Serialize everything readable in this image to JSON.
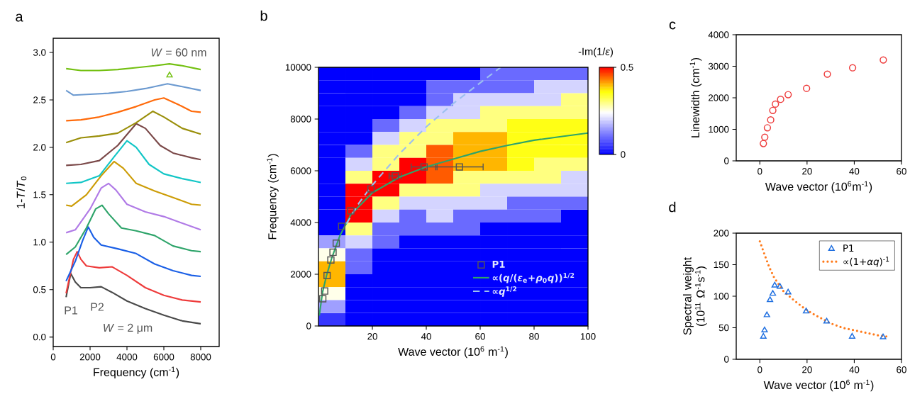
{
  "chart_data": [
    {
      "type": "line",
      "title": "a",
      "xlabel": "Frequency (cm$^{-1}$)",
      "ylabel": "1-*T*/*T*$_{0}$",
      "xlim": [
        0,
        9000
      ],
      "xticks": [
        0,
        2000,
        4000,
        6000,
        8000
      ],
      "ylim": [
        -0.1,
        3.15
      ],
      "yticks": [
        {
          "value": 0,
          "label": "0.0"
        },
        0.5,
        {
          "value": 1,
          "label": "1.0"
        },
        1.5,
        {
          "value": 2,
          "label": "2.0"
        },
        2.5,
        {
          "value": 3,
          "label": "3.0"
        }
      ],
      "series": [
        {
          "color": "#4a4a4a",
          "x": [
            700,
            950,
            1200,
            1500,
            2000,
            2600,
            3200,
            4000,
            5000,
            6000,
            7000,
            8000
          ],
          "values": [
            0.42,
            0.67,
            0.58,
            0.52,
            0.52,
            0.53,
            0.47,
            0.38,
            0.3,
            0.23,
            0.17,
            0.14
          ]
        },
        {
          "color": "#ee3b3b",
          "x": [
            700,
            1100,
            1300,
            1500,
            1800,
            2500,
            3200,
            4000,
            5000,
            6000,
            7000,
            8000
          ],
          "values": [
            0.46,
            0.82,
            0.9,
            0.82,
            0.75,
            0.73,
            0.74,
            0.65,
            0.52,
            0.44,
            0.39,
            0.37
          ]
        },
        {
          "color": "#1a5fe6",
          "x": [
            700,
            1200,
            1600,
            1900,
            2200,
            2600,
            3500,
            4500,
            5500,
            6500,
            7500,
            8000
          ],
          "values": [
            0.59,
            0.8,
            1.02,
            1.16,
            1.05,
            0.97,
            0.93,
            0.88,
            0.77,
            0.7,
            0.65,
            0.64
          ]
        },
        {
          "color": "#2ea46a",
          "x": [
            700,
            1200,
            1800,
            2300,
            2650,
            3000,
            3700,
            4500,
            5500,
            6500,
            7500,
            8000
          ],
          "values": [
            0.87,
            0.95,
            1.15,
            1.35,
            1.39,
            1.3,
            1.15,
            1.12,
            1.07,
            0.96,
            0.91,
            0.9
          ]
        },
        {
          "color": "#b07ae6",
          "x": [
            700,
            1200,
            2000,
            2600,
            3000,
            3400,
            4000,
            5000,
            6000,
            7000,
            8000
          ],
          "values": [
            1.1,
            1.13,
            1.35,
            1.57,
            1.62,
            1.55,
            1.4,
            1.32,
            1.27,
            1.2,
            1.13
          ]
        },
        {
          "color": "#cc9c06",
          "x": [
            700,
            1000,
            1800,
            2600,
            3300,
            3800,
            4500,
            5500,
            6500,
            7500,
            8000
          ],
          "values": [
            1.39,
            1.38,
            1.5,
            1.7,
            1.85,
            1.78,
            1.62,
            1.54,
            1.47,
            1.4,
            1.39
          ]
        },
        {
          "color": "#12c6c6",
          "x": [
            700,
            1500,
            2500,
            3300,
            4000,
            4500,
            5200,
            6000,
            7000,
            8000
          ],
          "values": [
            1.62,
            1.63,
            1.7,
            1.9,
            2.07,
            2.0,
            1.82,
            1.72,
            1.67,
            1.63
          ]
        },
        {
          "color": "#7a4848",
          "x": [
            700,
            1500,
            2500,
            3500,
            4500,
            5000,
            5800,
            6500,
            7500,
            8000
          ],
          "values": [
            1.81,
            1.82,
            1.86,
            2.02,
            2.25,
            2.2,
            2.02,
            1.94,
            1.89,
            1.87
          ]
        },
        {
          "color": "#9a8f0a",
          "x": [
            700,
            1500,
            2500,
            3500,
            4500,
            5400,
            6000,
            7000,
            8000
          ],
          "values": [
            2.05,
            2.1,
            2.12,
            2.15,
            2.26,
            2.38,
            2.32,
            2.2,
            2.14
          ]
        },
        {
          "color": "#ff6a0a",
          "x": [
            700,
            1500,
            2500,
            3500,
            4500,
            5500,
            6000,
            6800,
            7500,
            8000
          ],
          "values": [
            2.28,
            2.29,
            2.32,
            2.37,
            2.43,
            2.5,
            2.52,
            2.45,
            2.38,
            2.37
          ]
        },
        {
          "color": "#6c9ad0",
          "x": [
            700,
            1100,
            2000,
            3000,
            4000,
            5000,
            6200,
            7000,
            8000
          ],
          "values": [
            2.6,
            2.55,
            2.56,
            2.57,
            2.59,
            2.62,
            2.67,
            2.64,
            2.6
          ]
        },
        {
          "color": "#73c011",
          "x": [
            700,
            1500,
            2500,
            3500,
            4500,
            5500,
            6300,
            7000,
            8000
          ],
          "values": [
            2.83,
            2.81,
            2.81,
            2.82,
            2.84,
            2.86,
            2.88,
            2.86,
            2.82
          ]
        },
        {
          "type": "scatter",
          "marker": "triangle",
          "color": "#73c011",
          "x": [
            6310
          ],
          "values": [
            2.76
          ]
        }
      ],
      "annotations": [
        "P1",
        "P2",
        "*W* = 2 μm",
        "*W* = 60 nm"
      ]
    },
    {
      "type": "heatmap",
      "tick_labels": false,
      "clabel": "-Im(1/*ε*)",
      "clim": [
        0,
        0.5
      ],
      "cticks": [
        0,
        0.5
      ],
      "categories": [
        null,
        null,
        null,
        null,
        null,
        null,
        null,
        null,
        null,
        null
      ],
      "y_categories": [
        null,
        null,
        null,
        null,
        null,
        null,
        null,
        null,
        null,
        null,
        null,
        null,
        null,
        null,
        null,
        null,
        null,
        null,
        null,
        null
      ],
      "cells": [
        [
          0,
          0,
          0,
          0,
          0,
          0,
          0.1,
          0.1,
          0.1,
          0.1
        ],
        [
          0,
          0,
          0,
          0,
          0.1,
          0.1,
          0.1,
          0.1,
          0.2,
          0.2
        ],
        [
          0,
          0,
          0,
          0,
          0.1,
          0.2,
          0.2,
          0.2,
          0.2,
          0.3
        ],
        [
          0,
          0,
          0,
          0.1,
          0.2,
          0.2,
          0.3,
          0.3,
          0.3,
          0.3
        ],
        [
          0,
          0,
          0.1,
          0.2,
          0.3,
          0.3,
          0.3,
          0.35,
          0.35,
          0.35
        ],
        [
          0,
          0,
          0.2,
          0.3,
          0.3,
          0.4,
          0.4,
          0.35,
          0.35,
          0.35
        ],
        [
          0,
          0.1,
          0.3,
          0.3,
          0.45,
          0.4,
          0.4,
          0.35,
          0.35,
          0.35
        ],
        [
          0,
          0.2,
          0.3,
          0.5,
          0.45,
          0.4,
          0.4,
          0.35,
          0.3,
          0.3
        ],
        [
          0,
          0.3,
          0.5,
          0.5,
          0.45,
          0.3,
          0.3,
          0.3,
          0.3,
          0.2
        ],
        [
          0,
          0.5,
          0.5,
          0.3,
          0.3,
          0.3,
          0.2,
          0.2,
          0.2,
          0.2
        ],
        [
          0,
          0.5,
          0.3,
          0.2,
          0.2,
          0.2,
          0.2,
          0.1,
          0.1,
          0.1
        ],
        [
          0,
          0.5,
          0.2,
          0.1,
          0.2,
          0.1,
          0.1,
          0.1,
          0.1,
          0
        ],
        [
          0,
          0.3,
          0.1,
          0.1,
          0.1,
          0.1,
          0,
          0,
          0,
          0
        ],
        [
          0.15,
          0.2,
          0.1,
          0,
          0,
          0,
          0,
          0,
          0,
          0
        ],
        [
          0.25,
          0.1,
          0,
          0,
          0,
          0,
          0,
          0,
          0,
          0
        ],
        [
          0.4,
          0.1,
          0,
          0,
          0,
          0,
          0,
          0,
          0,
          0
        ],
        [
          0.4,
          0,
          0,
          0,
          0,
          0,
          0,
          0,
          0,
          0
        ],
        [
          0.25,
          0,
          0,
          0,
          0,
          0,
          0,
          0,
          0,
          0
        ],
        [
          0.15,
          0,
          0,
          0,
          0,
          0,
          0,
          0,
          0,
          0
        ],
        [
          0.05,
          0,
          0,
          0,
          0,
          0,
          0,
          0,
          0,
          0
        ]
      ]
    },
    {
      "type": "scatter",
      "title": "b",
      "xlabel": "Wave vector (10$^{6}$ m$^{-1}$)",
      "ylabel": "Frequency (cm$^{-1}$)",
      "xlim": [
        0,
        100
      ],
      "xticks": [
        20,
        40,
        60,
        80,
        100
      ],
      "ylim": [
        0,
        10000
      ],
      "yticks": [
        0,
        2000,
        4000,
        6000,
        8000,
        10000
      ],
      "legend": "bottom right",
      "series": [
        {
          "name": "P1",
          "type": "scatter",
          "marker": "square",
          "color": "#555555",
          "x": [
            1.6,
            2.3,
            3.2,
            4.6,
            5.4,
            6.6,
            8.6,
            12,
            19.5,
            28.5,
            39.2,
            52.3
          ],
          "values": [
            1050,
            1350,
            1950,
            2550,
            2850,
            3200,
            3850,
            4450,
            5300,
            5800,
            6150,
            6150
          ],
          "xerrors": [
            null,
            null,
            null,
            null,
            null,
            null,
            null,
            null,
            null,
            2.3,
            4.8,
            8.8
          ]
        },
        {
          "name": "∝(*q*/(*ε*$_{e}$+*ρ*$_{0}$*q*))$^{1/2}$",
          "type": "line",
          "color": "#2ea46a",
          "x": [
            0.3,
            1.5,
            3,
            5,
            8,
            12,
            20,
            30,
            40,
            50,
            60,
            70,
            80,
            90,
            100
          ],
          "values": [
            400,
            1300,
            1950,
            2650,
            3500,
            4300,
            5150,
            5750,
            6150,
            6450,
            6750,
            6980,
            7180,
            7320,
            7460
          ]
        },
        {
          "name": "∝*q*$^{1/2}$",
          "type": "line",
          "line_style": "dashed",
          "color": "#9cc0f0",
          "x": [
            10.4,
            15,
            20,
            30,
            40,
            50,
            60,
            67.6
          ],
          "values": [
            3950,
            4750,
            5450,
            6650,
            7700,
            8600,
            9400,
            10000
          ]
        }
      ]
    },
    {
      "type": "scatter",
      "title": "c",
      "xlabel": "Wave vector (10$^{6}$m$^{-1}$)",
      "ylabel": "Linewidth (cm$^{-1}$)",
      "xlim": [
        -10,
        60
      ],
      "xticks": [
        0,
        20,
        40,
        60
      ],
      "ylim": [
        0,
        4000
      ],
      "yticks": [
        0,
        1000,
        2000,
        3000,
        4000
      ],
      "series": [
        {
          "type": "scatter",
          "marker": "circle",
          "color": "#ee3b3b",
          "x": [
            1.5,
            2.1,
            3.2,
            4.6,
            5.5,
            6.6,
            8.8,
            12,
            19.8,
            28.6,
            39.3,
            52.3
          ],
          "values": [
            550,
            750,
            1050,
            1300,
            1600,
            1800,
            1950,
            2100,
            2300,
            2750,
            2950,
            3200
          ]
        }
      ]
    },
    {
      "type": "scatter",
      "title": "d",
      "xlabel": "Wave vector (10$^{6}$ m$^{-1}$)",
      "ylabel": "Spectral weight (10$^{11}$ Ω$^{-1}$s$^{-1}$)",
      "xlim": [
        -10,
        60
      ],
      "xticks": [
        0,
        20,
        40,
        60
      ],
      "ylim": [
        0,
        200
      ],
      "yticks": [
        0,
        50,
        100,
        150,
        200
      ],
      "legend": "top right",
      "series": [
        {
          "name": "P1",
          "type": "scatter",
          "marker": "triangle",
          "color": "#1f6fe0",
          "x": [
            1.5,
            2,
            3,
            4.3,
            5.5,
            6.3,
            8.5,
            12,
            19.6,
            28.3,
            39.1,
            52.2
          ],
          "values": [
            36,
            46,
            70,
            94,
            104,
            117,
            115,
            106,
            76,
            60,
            36,
            35
          ]
        },
        {
          "name": "∝(1+*αq*)$^{-1}$",
          "type": "line",
          "line_style": "dotted",
          "color": "#ff7a1a",
          "x": [
            0,
            2,
            4,
            6,
            8,
            10,
            14,
            18,
            22,
            26,
            30,
            35,
            40,
            45,
            50,
            54
          ],
          "values": [
            187,
            166,
            146,
            130,
            119,
            108,
            95,
            83,
            73,
            65,
            57,
            50,
            46,
            42,
            38,
            36
          ]
        }
      ]
    }
  ]
}
